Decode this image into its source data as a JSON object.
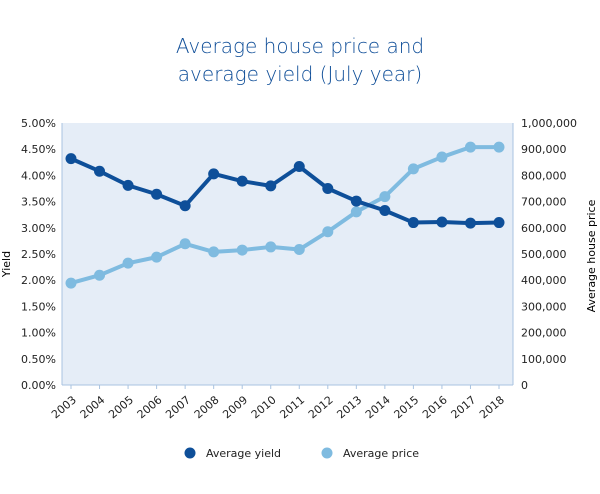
{
  "chart_data": {
    "type": "line",
    "title": [
      "Average house price and",
      "average yield (July year)"
    ],
    "x": [
      "2003",
      "2004",
      "2005",
      "2006",
      "2007",
      "2008",
      "2009",
      "2010",
      "2011",
      "2012",
      "2013",
      "2014",
      "2015",
      "2016",
      "2017",
      "2018"
    ],
    "series": [
      {
        "name": "Average yield",
        "axis": "left",
        "color": "#0e4f99",
        "values": [
          4.32,
          4.08,
          3.81,
          3.64,
          3.42,
          4.03,
          3.89,
          3.8,
          4.17,
          3.75,
          3.51,
          3.33,
          3.1,
          3.11,
          3.09,
          3.1
        ]
      },
      {
        "name": "Average price",
        "axis": "right",
        "color": "#7fbbe0",
        "values": [
          389000,
          419000,
          465000,
          488000,
          539000,
          508000,
          515000,
          527000,
          517000,
          585000,
          661000,
          719000,
          825000,
          870000,
          908000,
          908000
        ]
      }
    ],
    "left_axis": {
      "label": "Yield",
      "ylim": [
        0,
        5
      ],
      "ticks": [
        0,
        0.5,
        1,
        1.5,
        2,
        2.5,
        3,
        3.5,
        4,
        4.5,
        5
      ],
      "tick_labels": [
        "0.00%",
        "0.50%",
        "1.00%",
        "1.50%",
        "2.00%",
        "2.50%",
        "3.00%",
        "3.50%",
        "4.00%",
        "4.50%",
        "5.00%"
      ]
    },
    "right_axis": {
      "label": "Average house price",
      "ylim": [
        0,
        1000000
      ],
      "ticks": [
        0,
        100000,
        200000,
        300000,
        400000,
        500000,
        600000,
        700000,
        800000,
        900000,
        1000000
      ],
      "tick_labels": [
        "0",
        "100,000",
        "200,000",
        "300,000",
        "400,000",
        "500,000",
        "600,000",
        "700,000",
        "800,000",
        "900,000",
        "1,000,000"
      ]
    },
    "grid": false,
    "legend_position": "bottom",
    "colors": {
      "plot_background": "#e5edf7",
      "axis_line": "#a9c3e0"
    }
  }
}
